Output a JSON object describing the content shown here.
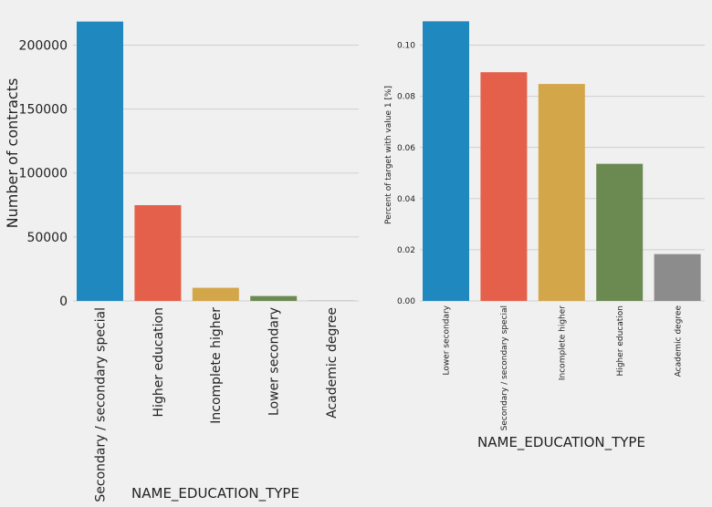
{
  "chart_data": [
    {
      "type": "bar",
      "categories": [
        "Secondary / secondary special",
        "Higher education",
        "Incomplete higher",
        "Lower secondary",
        "Academic degree"
      ],
      "values": [
        218391,
        74863,
        10277,
        3816,
        164
      ],
      "colors": [
        "#1f88be",
        "#e4604a",
        "#d4a64a",
        "#6b8a52",
        "#8c8c8c"
      ],
      "xlabel": "NAME_EDUCATION_TYPE",
      "ylabel": "Number of contracts",
      "ylim": [
        0,
        221000
      ],
      "yticks": [
        0,
        50000,
        100000,
        150000,
        200000
      ],
      "grid": true
    },
    {
      "type": "bar",
      "categories": [
        "Lower secondary",
        "Secondary / secondary special",
        "Incomplete higher",
        "Higher education",
        "Academic degree"
      ],
      "values": [
        0.1093,
        0.0894,
        0.0848,
        0.0536,
        0.0183
      ],
      "colors": [
        "#1f88be",
        "#e4604a",
        "#d4a64a",
        "#6b8a52",
        "#8c8c8c"
      ],
      "xlabel": "NAME_EDUCATION_TYPE",
      "ylabel": "Percent of target with value 1 [%]",
      "ylim": [
        0,
        0.1105
      ],
      "yticks": [
        "0.00",
        "0.02",
        "0.04",
        "0.06",
        "0.08",
        "0.10"
      ],
      "grid": true
    }
  ]
}
